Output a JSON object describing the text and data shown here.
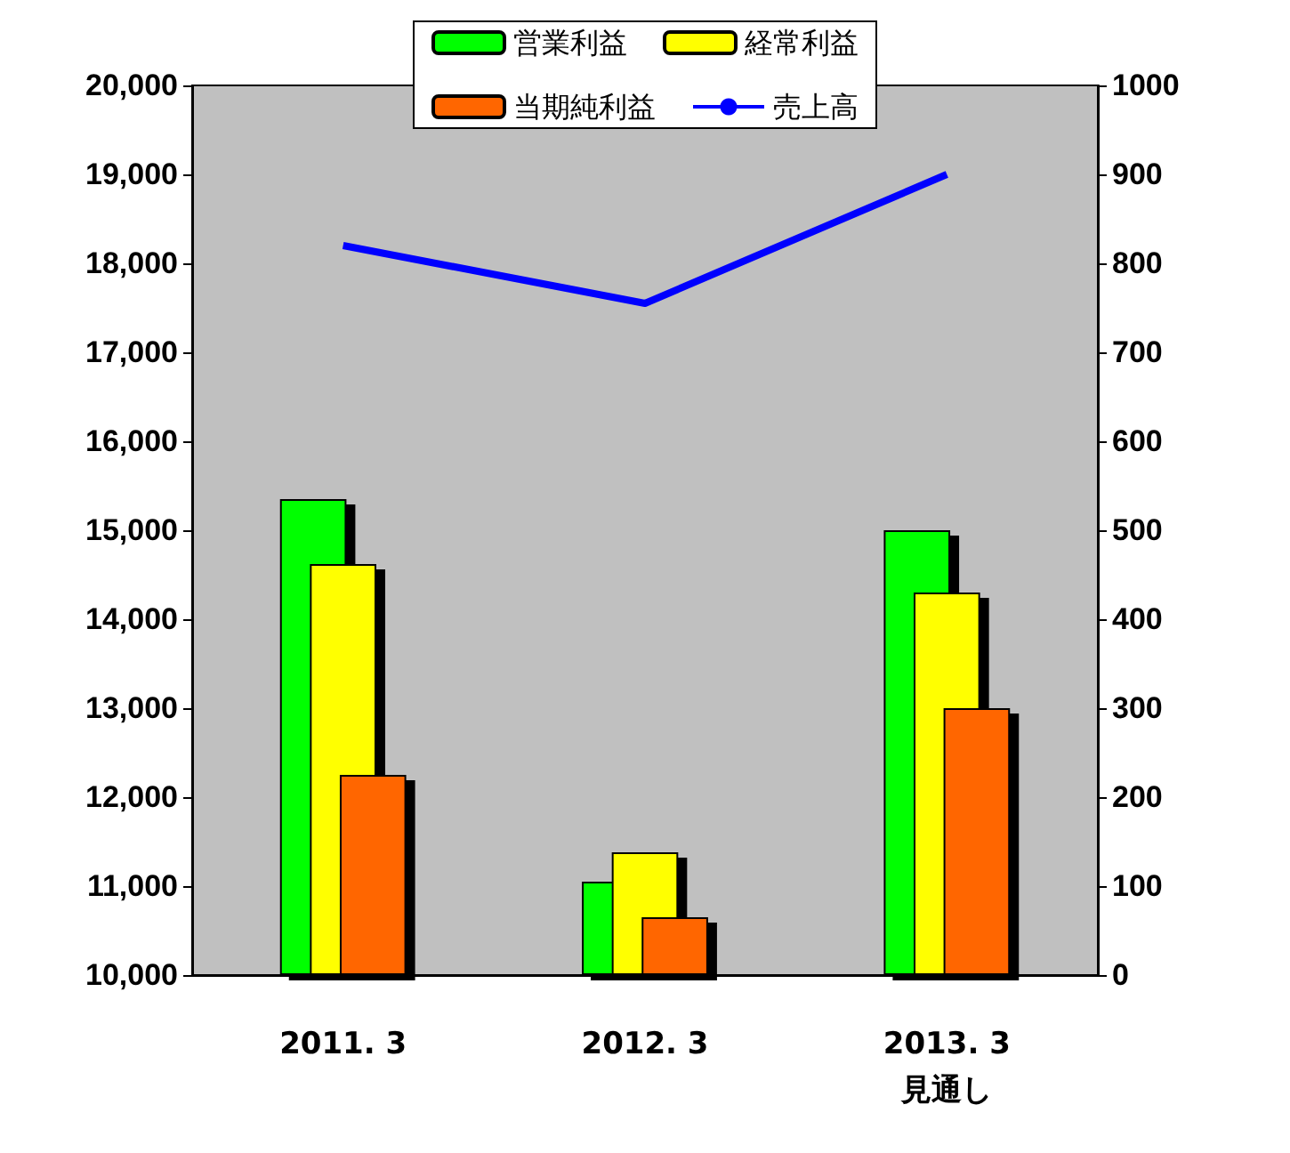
{
  "chart_data": {
    "type": "bar",
    "categories": [
      "2011. 3",
      "2012. 3",
      "2013. 3\n見通し"
    ],
    "series": [
      {
        "name": "営業利益",
        "color": "#00ff00",
        "values": [
          535,
          105,
          500
        ],
        "axis": "y2"
      },
      {
        "name": "経常利益",
        "color": "#ffff00",
        "values": [
          462,
          138,
          430
        ],
        "axis": "y2"
      },
      {
        "name": "当期純利益",
        "color": "#ff6600",
        "values": [
          225,
          65,
          300
        ],
        "axis": "y2"
      },
      {
        "name": "売上高",
        "type": "line",
        "color": "#0000ff",
        "values": [
          18200,
          17550,
          19000
        ]
      }
    ],
    "ylim": [
      10000,
      20000
    ],
    "yticks": [
      {
        "value": 10000,
        "label": "10,000"
      },
      {
        "value": 11000,
        "label": "11,000"
      },
      {
        "value": 12000,
        "label": "12,000"
      },
      {
        "value": 13000,
        "label": "13,000"
      },
      {
        "value": 14000,
        "label": "14,000"
      },
      {
        "value": 15000,
        "label": "15,000"
      },
      {
        "value": 16000,
        "label": "16,000"
      },
      {
        "value": 17000,
        "label": "17,000"
      },
      {
        "value": 18000,
        "label": "18,000"
      },
      {
        "value": 19000,
        "label": "19,000"
      },
      {
        "value": 20000,
        "label": "20,000"
      }
    ],
    "y2lim": [
      0,
      1000
    ],
    "y2ticks": [
      0,
      100,
      200,
      300,
      400,
      500,
      600,
      700,
      800,
      900,
      1000
    ],
    "grid": false,
    "legend": "top"
  }
}
